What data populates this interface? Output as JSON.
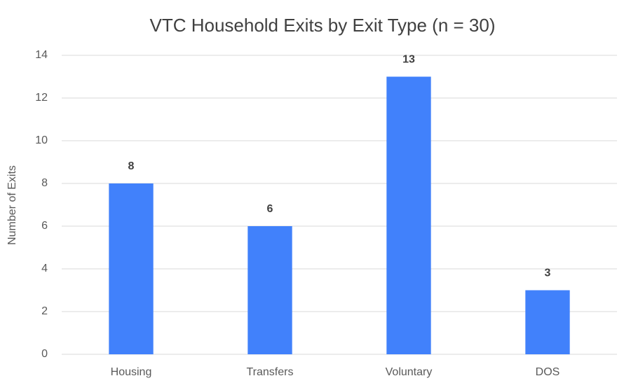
{
  "chart_data": {
    "type": "bar",
    "title": "VTC Household Exits by Exit Type (n = 30)",
    "y_label": "Number of Exits",
    "categories": [
      "Housing",
      "Transfers",
      "Voluntary",
      "DOS"
    ],
    "values": [
      8,
      6,
      13,
      3
    ],
    "color": "#4181fb",
    "ylim": [
      0,
      14
    ],
    "yticks": [
      0,
      2,
      4,
      6,
      8,
      10,
      12,
      14
    ],
    "grid": true
  }
}
